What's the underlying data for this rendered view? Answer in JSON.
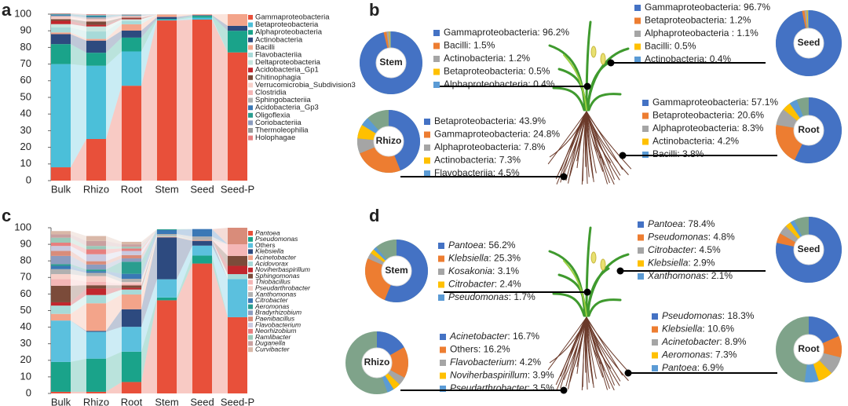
{
  "chart_data": [
    {
      "type": "bar",
      "stacked": true,
      "panel": "a",
      "categories": [
        "Bulk",
        "Rhizo",
        "Root",
        "Stem",
        "Seed",
        "Seed-P"
      ],
      "ylim": [
        0,
        100
      ],
      "yticks": [
        0,
        10,
        20,
        30,
        40,
        50,
        60,
        70,
        80,
        90,
        100
      ],
      "series": [
        {
          "name": "Gammaproteobacteria",
          "color": "#e8503a",
          "values": [
            8,
            25,
            57,
            96.2,
            96.7,
            77
          ]
        },
        {
          "name": "Betaproteobacteria",
          "color": "#4bbfd9",
          "values": [
            62,
            44,
            20.6,
            0.5,
            1.2,
            0
          ]
        },
        {
          "name": "Alphaproteobacteria",
          "color": "#1aa38a",
          "values": [
            12,
            7.8,
            8.3,
            0.4,
            1.1,
            13
          ]
        },
        {
          "name": "Actinobacteria",
          "color": "#2d4a7f",
          "values": [
            6,
            7.3,
            4.2,
            1.2,
            0.4,
            3
          ]
        },
        {
          "name": "Bacilli",
          "color": "#f3a48a",
          "values": [
            1,
            1,
            3.8,
            1.5,
            0.5,
            7
          ]
        },
        {
          "name": "Flavobacteriia",
          "color": "#a7dad8",
          "values": [
            3,
            4.5,
            2,
            0.1,
            0,
            0
          ]
        },
        {
          "name": "Deltaproteobacteria",
          "color": "#c7e6df",
          "values": [
            2,
            3,
            1,
            0,
            0,
            0
          ]
        },
        {
          "name": "Acidobacteria_Gp1",
          "color": "#c1272d",
          "values": [
            2,
            1,
            0.5,
            0,
            0,
            0
          ]
        },
        {
          "name": "Chitinophagia",
          "color": "#7b4b3a",
          "values": [
            1,
            2,
            0.5,
            0,
            0,
            0
          ]
        },
        {
          "name": "Verrucomicrobia_Subdivision3",
          "color": "#f7cfc8",
          "values": [
            1,
            1,
            0.3,
            0,
            0,
            0
          ]
        },
        {
          "name": "Clostridia",
          "color": "#f4b6b6",
          "values": [
            0.5,
            0.5,
            0.5,
            0,
            0,
            0
          ]
        },
        {
          "name": "Sphingobacteriia",
          "color": "#b0b0b0",
          "values": [
            0.5,
            1,
            0.5,
            0,
            0,
            0
          ]
        },
        {
          "name": "Acidobacteria_Gp3",
          "color": "#3a78b5",
          "values": [
            0.5,
            0.5,
            0.2,
            0,
            0,
            0
          ]
        },
        {
          "name": "Oligoflexia",
          "color": "#2a9d8f",
          "values": [
            0.3,
            0.5,
            0.2,
            0,
            0,
            0
          ]
        },
        {
          "name": "Coriobacteriia",
          "color": "#8c9cbf",
          "values": [
            0.2,
            0.3,
            0.1,
            0,
            0,
            0
          ]
        },
        {
          "name": "Thermoleophilia",
          "color": "#9a9a9a",
          "values": [
            0.3,
            0.3,
            0.1,
            0,
            0,
            0
          ]
        },
        {
          "name": "Holophagae",
          "color": "#e77f7f",
          "values": [
            0.2,
            0.3,
            0.1,
            0,
            0,
            0
          ]
        }
      ]
    },
    {
      "type": "donut",
      "panel": "b",
      "colors": [
        "#4472c4",
        "#ed7d31",
        "#a5a5a5",
        "#ffc000",
        "#5b9bd5"
      ],
      "donuts": [
        {
          "name": "Stem",
          "labels": [
            "Gammaproteobacteria: 96.2%",
            "Bacilli: 1.5%",
            "Actinobacteria: 1.2%",
            "Betaproteobacteria: 0.5%",
            "Alphaproteobacteria: 0.4%"
          ],
          "values": [
            96.2,
            1.5,
            1.2,
            0.5,
            0.4
          ]
        },
        {
          "name": "Seed",
          "labels": [
            "Gammaproteobacteria: 96.7%",
            "Betaproteobacteria: 1.2%",
            "Alphaproteobacteria : 1.1%",
            "Bacilli: 0.5%",
            "Actinobacteria: 0.4%"
          ],
          "values": [
            96.7,
            1.2,
            1.1,
            0.5,
            0.4
          ]
        },
        {
          "name": "Rhizo",
          "labels": [
            "Betaproteobacteria: 43.9%",
            "Gammaproteobacteria: 24.8%",
            "Alphaproteobacteria: 7.8%",
            "Actinobacteria: 7.3%",
            "Flavobacteriia: 4.5%"
          ],
          "values": [
            43.9,
            24.8,
            7.8,
            7.3,
            4.5
          ]
        },
        {
          "name": "Root",
          "labels": [
            "Gammaproteobacteria: 57.1%",
            "Betaproteobacteria: 20.6%",
            "Alphaproteobacteria: 8.3%",
            "Actinobacteria: 4.2%",
            "Bacilli: 3.8%"
          ],
          "values": [
            57.1,
            20.6,
            8.3,
            4.2,
            3.8
          ]
        }
      ]
    },
    {
      "type": "bar",
      "stacked": true,
      "panel": "c",
      "categories": [
        "Bulk",
        "Rhizo",
        "Root",
        "Stem",
        "Seed",
        "Seed-P"
      ],
      "ylim": [
        0,
        100
      ],
      "yticks": [
        0,
        10,
        20,
        30,
        40,
        50,
        60,
        70,
        80,
        90,
        100
      ],
      "series": [
        {
          "name": "Pantoea",
          "italic": true,
          "color": "#e8503a",
          "values": [
            1,
            1,
            6.9,
            56.2,
            78.4,
            46
          ]
        },
        {
          "name": "Pseudomonas",
          "italic": true,
          "color": "#1aa38a",
          "values": [
            18,
            20,
            18.3,
            1.7,
            4.8,
            0
          ]
        },
        {
          "name": "Others",
          "italic": false,
          "color": "#5bc0de",
          "values": [
            25,
            16.2,
            15,
            11,
            6,
            23
          ]
        },
        {
          "name": "Klebsiella",
          "italic": true,
          "color": "#2d4a7f",
          "values": [
            0,
            0.5,
            10.6,
            25.3,
            2.9,
            0
          ]
        },
        {
          "name": "Acinetobacter",
          "italic": true,
          "color": "#f3a48a",
          "values": [
            4,
            16.7,
            8.9,
            0.5,
            0.5,
            0
          ]
        },
        {
          "name": "Acidovorax",
          "italic": true,
          "color": "#a7dad8",
          "values": [
            5,
            5,
            3,
            0.5,
            0,
            3
          ]
        },
        {
          "name": "Noviherbaspirillum",
          "italic": true,
          "color": "#c1272d",
          "values": [
            2,
            3.9,
            1,
            0,
            0,
            5
          ]
        },
        {
          "name": "Sphingomonas",
          "italic": true,
          "color": "#7b4b3a",
          "values": [
            10,
            2,
            1.5,
            0,
            0,
            6
          ]
        },
        {
          "name": "Thiobacillus",
          "italic": true,
          "color": "#f4b6b6",
          "values": [
            4,
            2,
            1,
            0,
            0,
            7
          ]
        },
        {
          "name": "Pseudarthrobacter",
          "italic": true,
          "color": "#f7cfc8",
          "values": [
            3,
            3.5,
            1,
            0,
            0,
            0
          ]
        },
        {
          "name": "Xanthomonas",
          "italic": true,
          "color": "#b0b0b0",
          "values": [
            3,
            2,
            2,
            1,
            2.1,
            0
          ]
        },
        {
          "name": "Citrobacter",
          "italic": true,
          "color": "#3a78b5",
          "values": [
            2,
            1,
            3,
            2.4,
            4.5,
            0
          ]
        },
        {
          "name": "Aeromonas",
          "italic": true,
          "color": "#2a9d8f",
          "values": [
            1,
            1,
            7.3,
            0.5,
            0,
            0
          ]
        },
        {
          "name": "Bradyrhizobium",
          "italic": true,
          "color": "#8c9cbf",
          "values": [
            5,
            3,
            2,
            0,
            0,
            0
          ]
        },
        {
          "name": "Paenibacillus",
          "italic": true,
          "color": "#d98c7a",
          "values": [
            3,
            2,
            2,
            0,
            0,
            10
          ]
        },
        {
          "name": "Flavobacterium",
          "italic": true,
          "color": "#c9c9e0",
          "values": [
            3,
            4.2,
            2.5,
            0,
            0,
            0
          ]
        },
        {
          "name": "Neorhizobium",
          "italic": true,
          "color": "#e77f7f",
          "values": [
            2,
            3,
            1.5,
            0,
            0,
            0
          ]
        },
        {
          "name": "Ramlibacter",
          "italic": true,
          "color": "#9ac9b9",
          "values": [
            3,
            2,
            1,
            0,
            0,
            0
          ]
        },
        {
          "name": "Duganella",
          "italic": true,
          "color": "#c9a0a0",
          "values": [
            2,
            3,
            1.5,
            0,
            0,
            0
          ]
        },
        {
          "name": "Curvibacter",
          "italic": true,
          "color": "#d9b8a8",
          "values": [
            2,
            3,
            1.5,
            0,
            0,
            0
          ]
        }
      ]
    },
    {
      "type": "donut",
      "panel": "d",
      "colors": [
        "#4472c4",
        "#ed7d31",
        "#a5a5a5",
        "#ffc000",
        "#5b9bd5"
      ],
      "donuts": [
        {
          "name": "Stem",
          "labels": [
            "Pantoea: 56.2%",
            "Klebsiella: 25.3%",
            "Kosakonia: 3.1%",
            "Citrobacter: 2.4%",
            "Pseudomonas: 1.7%"
          ],
          "values": [
            56.2,
            25.3,
            3.1,
            2.4,
            1.7
          ],
          "italic": [
            true,
            true,
            true,
            true,
            true
          ]
        },
        {
          "name": "Seed",
          "labels": [
            "Pantoea: 78.4%",
            "Pseudomonas: 4.8%",
            "Citrobacter: 4.5%",
            "Klebsiella: 2.9%",
            "Xanthomonas: 2.1%"
          ],
          "values": [
            78.4,
            4.8,
            4.5,
            2.9,
            2.1
          ],
          "italic": [
            true,
            true,
            true,
            true,
            true
          ]
        },
        {
          "name": "Rhizo",
          "labels": [
            "Acinetobacter: 16.7%",
            "Others: 16.2%",
            "Flavobacterium: 4.2%",
            "Noviherbaspirillum: 3.9%",
            "Pseudarthrobacter: 3.5%"
          ],
          "values": [
            16.7,
            16.2,
            4.2,
            3.9,
            3.5
          ],
          "italic": [
            true,
            false,
            true,
            true,
            true
          ]
        },
        {
          "name": "Root",
          "labels": [
            "Pseudomonas: 18.3%",
            "Klebsiella: 10.6%",
            "Acinetobacter: 8.9%",
            "Aeromonas: 7.3%",
            "Pantoea: 6.9%"
          ],
          "values": [
            18.3,
            10.6,
            8.9,
            7.3,
            6.9
          ],
          "italic": [
            true,
            true,
            true,
            true,
            true
          ]
        }
      ]
    }
  ]
}
